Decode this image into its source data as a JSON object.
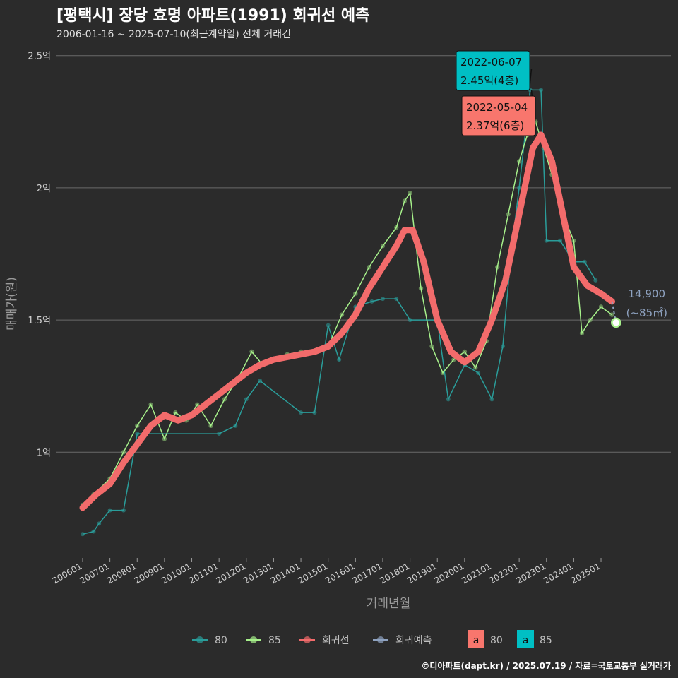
{
  "title": "[평택시] 장당 효명 아파트(1991) 회귀선 예측",
  "subtitle": "2006-01-16 ~ 2025-07-10(최근계약일) 전체 거래건",
  "footer": "©디아파트(dapt.kr) / 2025.07.19 / 자료=국토교통부 실거래가",
  "colors": {
    "background": "#2b2b2b",
    "grid": "#6a6a6a",
    "series_80": "#2a9d9a",
    "series_85": "#a6f08a",
    "regression": "#f26b6b",
    "prediction": "#8ea2c0",
    "ann_80": "#f8766d",
    "ann_85": "#00bfc4"
  },
  "chart_data": {
    "type": "line",
    "xlabel": "거래년월",
    "ylabel": "매매가(원)",
    "y_unit": "억",
    "ylim": [
      0.6,
      2.55
    ],
    "y_ticks": [
      {
        "value": 1.0,
        "label": "1억"
      },
      {
        "value": 1.5,
        "label": "1.5억"
      },
      {
        "value": 2.0,
        "label": "2억"
      },
      {
        "value": 2.5,
        "label": "2.5억"
      }
    ],
    "xlim": [
      2006.0,
      2025.75
    ],
    "x_ticks": [
      {
        "value": 2006.0,
        "label": "200601"
      },
      {
        "value": 2007.0,
        "label": "200701"
      },
      {
        "value": 2008.0,
        "label": "200801"
      },
      {
        "value": 2009.0,
        "label": "200901"
      },
      {
        "value": 2010.0,
        "label": "201001"
      },
      {
        "value": 2011.0,
        "label": "201101"
      },
      {
        "value": 2012.0,
        "label": "201201"
      },
      {
        "value": 2013.0,
        "label": "201301"
      },
      {
        "value": 2014.0,
        "label": "201401"
      },
      {
        "value": 2015.0,
        "label": "201501"
      },
      {
        "value": 2016.0,
        "label": "201601"
      },
      {
        "value": 2017.0,
        "label": "201701"
      },
      {
        "value": 2018.0,
        "label": "201801"
      },
      {
        "value": 2019.0,
        "label": "201901"
      },
      {
        "value": 2020.0,
        "label": "202001"
      },
      {
        "value": 2021.0,
        "label": "202101"
      },
      {
        "value": 2022.0,
        "label": "202201"
      },
      {
        "value": 2023.0,
        "label": "202301"
      },
      {
        "value": 2024.0,
        "label": "202401"
      },
      {
        "value": 2025.0,
        "label": "202501"
      }
    ],
    "grid": true,
    "legend_position": "bottom",
    "legend": [
      {
        "key": "80",
        "label": "80",
        "kind": "line",
        "color": "#2a9d9a"
      },
      {
        "key": "85",
        "label": "85",
        "kind": "line",
        "color": "#a6f08a"
      },
      {
        "key": "reg",
        "label": "회귀선",
        "kind": "line",
        "color": "#f26b6b"
      },
      {
        "key": "pred",
        "label": "회귀예측",
        "kind": "line",
        "color": "#8ea2c0"
      },
      {
        "key": "a80",
        "label": "80",
        "kind": "box",
        "color": "#f8766d",
        "glyph": "a"
      },
      {
        "key": "a85",
        "label": "85",
        "kind": "box",
        "color": "#00bfc4",
        "glyph": "a"
      }
    ],
    "series": [
      {
        "name": "80",
        "color": "#2a9d9a",
        "x": [
          2006.0,
          2006.4,
          2006.6,
          2007.0,
          2007.5,
          2008.0,
          2011.0,
          2011.6,
          2012.0,
          2012.5,
          2014.0,
          2014.5,
          2015.0,
          2015.4,
          2016.0,
          2016.6,
          2017.0,
          2017.5,
          2018.0,
          2019.0,
          2019.4,
          2020.0,
          2020.5,
          2021.0,
          2021.4,
          2021.7,
          2022.0,
          2022.4,
          2022.8,
          2023.0,
          2023.5,
          2024.0,
          2024.4,
          2024.8
        ],
        "y": [
          0.69,
          0.7,
          0.73,
          0.78,
          0.78,
          1.07,
          1.07,
          1.1,
          1.2,
          1.27,
          1.15,
          1.15,
          1.48,
          1.35,
          1.55,
          1.57,
          1.58,
          1.58,
          1.5,
          1.5,
          1.2,
          1.33,
          1.3,
          1.2,
          1.4,
          1.75,
          2.0,
          2.37,
          2.37,
          1.8,
          1.8,
          1.72,
          1.72,
          1.65
        ]
      },
      {
        "name": "85",
        "color": "#a6f08a",
        "x": [
          2006.0,
          2006.4,
          2007.0,
          2007.5,
          2008.0,
          2008.5,
          2009.0,
          2009.4,
          2009.8,
          2010.2,
          2010.7,
          2011.2,
          2011.7,
          2012.2,
          2012.6,
          2013.0,
          2013.5,
          2014.0,
          2014.5,
          2015.0,
          2015.5,
          2016.0,
          2016.5,
          2017.0,
          2017.5,
          2017.8,
          2018.0,
          2018.4,
          2018.8,
          2019.2,
          2019.6,
          2020.0,
          2020.4,
          2020.8,
          2021.2,
          2021.6,
          2022.0,
          2022.3,
          2022.6,
          2022.9,
          2023.2,
          2023.6,
          2024.0,
          2024.3,
          2024.6,
          2025.0,
          2025.4
        ],
        "y": [
          0.8,
          0.84,
          0.9,
          1.0,
          1.1,
          1.18,
          1.05,
          1.15,
          1.12,
          1.18,
          1.1,
          1.2,
          1.28,
          1.38,
          1.33,
          1.35,
          1.37,
          1.38,
          1.38,
          1.4,
          1.52,
          1.6,
          1.7,
          1.78,
          1.85,
          1.95,
          1.98,
          1.62,
          1.4,
          1.3,
          1.35,
          1.38,
          1.32,
          1.42,
          1.7,
          1.9,
          2.1,
          2.2,
          2.25,
          2.15,
          2.05,
          1.9,
          1.8,
          1.45,
          1.5,
          1.55,
          1.52
        ]
      },
      {
        "name": "회귀선",
        "color": "#f26b6b",
        "x": [
          2006.0,
          2006.5,
          2007.0,
          2007.5,
          2008.0,
          2008.5,
          2009.0,
          2009.5,
          2010.0,
          2010.5,
          2011.0,
          2011.5,
          2012.0,
          2012.5,
          2013.0,
          2013.5,
          2014.0,
          2014.5,
          2015.0,
          2015.5,
          2016.0,
          2016.5,
          2017.0,
          2017.5,
          2017.8,
          2018.1,
          2018.5,
          2019.0,
          2019.5,
          2020.0,
          2020.5,
          2021.0,
          2021.5,
          2022.0,
          2022.5,
          2022.8,
          2023.2,
          2023.6,
          2024.0,
          2024.5,
          2025.0,
          2025.4
        ],
        "y": [
          0.79,
          0.84,
          0.88,
          0.96,
          1.03,
          1.1,
          1.14,
          1.12,
          1.14,
          1.18,
          1.22,
          1.26,
          1.3,
          1.33,
          1.35,
          1.36,
          1.37,
          1.38,
          1.4,
          1.45,
          1.52,
          1.62,
          1.7,
          1.78,
          1.84,
          1.84,
          1.72,
          1.5,
          1.38,
          1.34,
          1.38,
          1.5,
          1.65,
          1.9,
          2.15,
          2.2,
          2.1,
          1.9,
          1.7,
          1.63,
          1.6,
          1.57
        ]
      },
      {
        "name": "회귀예측",
        "color": "#8ea2c0",
        "x": [
          2025.4,
          2025.55
        ],
        "y": [
          1.57,
          1.49
        ]
      }
    ],
    "annotations": [
      {
        "date": "2022-06-07",
        "value": "2.45억(4층)",
        "series": "85",
        "y": 2.45
      },
      {
        "date": "2022-05-04",
        "value": "2.37억(6층)",
        "series": "80",
        "y": 2.37
      }
    ],
    "prediction_label": {
      "price": "14,900",
      "area": "(~85㎡)",
      "x": 2025.55,
      "y": 1.49
    }
  }
}
